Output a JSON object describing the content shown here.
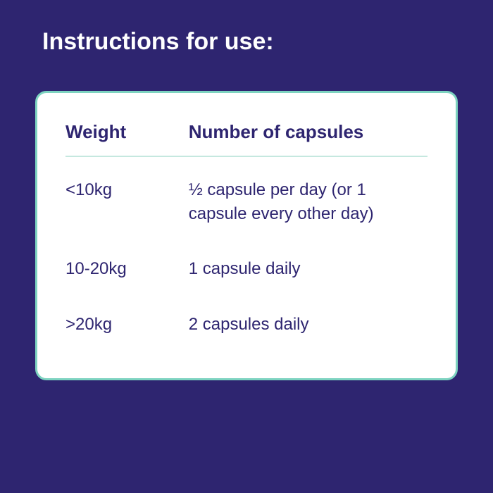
{
  "title": "Instructions for use:",
  "table": {
    "type": "table",
    "background_color": "#2e2570",
    "card_background": "#ffffff",
    "card_border_color": "#7dd3c0",
    "card_border_radius": 16,
    "header_underline_color": "#c5e8df",
    "text_color": "#2e2570",
    "title_color": "#ffffff",
    "title_fontsize": 34,
    "header_fontsize": 26,
    "cell_fontsize": 24,
    "columns": [
      {
        "label": "Weight",
        "width_pct": 34
      },
      {
        "label": "Number of capsules",
        "width_pct": 66
      }
    ],
    "rows": [
      {
        "weight": "<10kg",
        "capsules": "½ capsule per day (or 1 capsule every other day)"
      },
      {
        "weight": "10-20kg",
        "capsules": "1 capsule daily"
      },
      {
        "weight": ">20kg",
        "capsules": "2 capsules daily"
      }
    ]
  }
}
